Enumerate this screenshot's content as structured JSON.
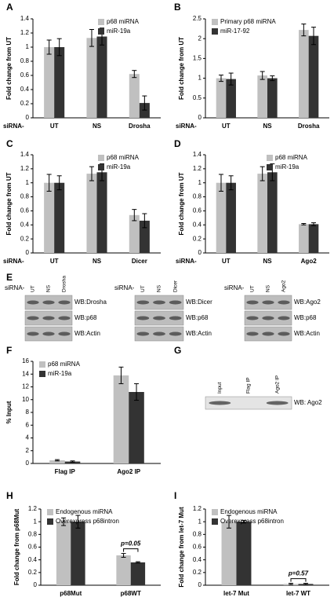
{
  "chart_data": [
    {
      "type": "bar",
      "label": "A",
      "y_label": "Fold change from UT",
      "x_prefix": "siRNA-",
      "categories": [
        "UT",
        "NS",
        "Drosha"
      ],
      "series": [
        {
          "name": "p68 miRNA",
          "color": "#c0c0c0",
          "values": [
            1,
            1.13,
            0.62
          ],
          "errors": [
            0.1,
            0.12,
            0.05
          ]
        },
        {
          "name": "miR-19a",
          "color": "#333333",
          "values": [
            1,
            1.15,
            0.21
          ],
          "errors": [
            0.12,
            0.12,
            0.1
          ]
        }
      ],
      "ylim": [
        0,
        1.4
      ],
      "yticks": [
        0,
        0.2,
        0.4,
        0.6,
        0.8,
        1,
        1.2,
        1.4
      ],
      "legend": "upper right"
    },
    {
      "type": "bar",
      "label": "B",
      "y_label": "Fold change from UT",
      "x_prefix": "siRNA-",
      "categories": [
        "UT",
        "NS",
        "Drosha"
      ],
      "series": [
        {
          "name": "Primary p68 miRNA",
          "color": "#c0c0c0",
          "values": [
            1,
            1.07,
            2.22
          ],
          "errors": [
            0.08,
            0.1,
            0.15
          ]
        },
        {
          "name": "miR-17-92",
          "color": "#333333",
          "values": [
            0.98,
            1.0,
            2.07
          ],
          "errors": [
            0.15,
            0.06,
            0.22
          ]
        }
      ],
      "ylim": [
        0,
        2.5
      ],
      "yticks": [
        0,
        0.5,
        1,
        1.5,
        2,
        2.5
      ],
      "legend": "upper left"
    },
    {
      "type": "bar",
      "label": "C",
      "y_label": "Fold change from UT",
      "x_prefix": "siRNA-",
      "categories": [
        "UT",
        "NS",
        "Dicer"
      ],
      "series": [
        {
          "name": "p68 miRNA",
          "color": "#c0c0c0",
          "values": [
            1,
            1.13,
            0.54
          ],
          "errors": [
            0.12,
            0.1,
            0.08
          ]
        },
        {
          "name": "miR-19a",
          "color": "#333333",
          "values": [
            1,
            1.15,
            0.46
          ],
          "errors": [
            0.1,
            0.12,
            0.1
          ]
        }
      ],
      "ylim": [
        0,
        1.4
      ],
      "yticks": [
        0,
        0.2,
        0.4,
        0.6,
        0.8,
        1,
        1.2,
        1.4
      ],
      "legend": "upper right"
    },
    {
      "type": "bar",
      "label": "D",
      "y_label": "Fold change from UT",
      "x_prefix": "siRNA-",
      "categories": [
        "UT",
        "NS",
        "Ago2"
      ],
      "series": [
        {
          "name": "p68 miRNA",
          "color": "#c0c0c0",
          "values": [
            1,
            1.13,
            0.41
          ],
          "errors": [
            0.12,
            0.1,
            0.01
          ]
        },
        {
          "name": "miR-19a",
          "color": "#333333",
          "values": [
            1,
            1.15,
            0.41
          ],
          "errors": [
            0.1,
            0.12,
            0.02
          ]
        }
      ],
      "ylim": [
        0,
        1.4
      ],
      "yticks": [
        0,
        0.2,
        0.4,
        0.6,
        0.8,
        1,
        1.2,
        1.4
      ],
      "legend": "upper right"
    },
    {
      "type": "bar",
      "label": "F",
      "y_label": "% Input",
      "categories": [
        "Flag IP",
        "Ago2 IP"
      ],
      "series": [
        {
          "name": "p68 miRNA",
          "color": "#c0c0c0",
          "values": [
            0.5,
            13.8
          ],
          "errors": [
            0.1,
            1.3
          ]
        },
        {
          "name": "miR-19a",
          "color": "#333333",
          "values": [
            0.3,
            11.2
          ],
          "errors": [
            0.1,
            1.3
          ]
        }
      ],
      "ylim": [
        0,
        16
      ],
      "yticks": [
        0,
        2,
        4,
        6,
        8,
        10,
        12,
        14,
        16
      ],
      "legend": "upper left"
    },
    {
      "type": "bar",
      "label": "H",
      "y_label": "Fold change from p68Mut",
      "annotation": "p=0.05",
      "categories": [
        "p68Mut",
        "p68WT"
      ],
      "series": [
        {
          "name": "Endogenous miRNA",
          "color": "#c0c0c0",
          "values": [
            1,
            0.47
          ],
          "errors": [
            0.06,
            0.03
          ]
        },
        {
          "name": "Overexpress p68intron",
          "color": "#333333",
          "values": [
            1,
            0.36
          ],
          "errors": [
            0.1,
            0.01
          ]
        }
      ],
      "ylim": [
        0,
        1.2
      ],
      "yticks": [
        0,
        0.2,
        0.4,
        0.6,
        0.8,
        1,
        1.2
      ],
      "legend": "upper left"
    },
    {
      "type": "bar",
      "label": "I",
      "y_label": "Fold change from let-7 Mut",
      "annotation": "p=0.57",
      "categories": [
        "let-7 Mut",
        "let-7 WT"
      ],
      "series": [
        {
          "name": "Endogenous miRNA",
          "color": "#c0c0c0",
          "values": [
            1,
            0.02
          ],
          "errors": [
            0.1,
            0.01
          ]
        },
        {
          "name": "Overexpress p68intron",
          "color": "#333333",
          "values": [
            1,
            0.02
          ],
          "errors": [
            0.02,
            0.01
          ]
        }
      ],
      "ylim": [
        0,
        1.2
      ],
      "yticks": [
        0,
        0.2,
        0.4,
        0.6,
        0.8,
        1,
        1.2
      ],
      "legend": "upper left"
    }
  ],
  "blot_panels": [
    {
      "label": "E",
      "blots": [
        {
          "prefix": "siRNA-",
          "lanes": [
            "UT",
            "NS",
            "Drosha"
          ],
          "rows": [
            "WB:Drosha",
            "WB:p68",
            "WB:Actin"
          ]
        },
        {
          "prefix": "siRNA-",
          "lanes": [
            "UT",
            "NS",
            "Dicer"
          ],
          "rows": [
            "WB:Dicer",
            "WB:p68",
            "WB:Actin"
          ]
        },
        {
          "prefix": "siRNA-",
          "lanes": [
            "UT",
            "NS",
            "Ago2"
          ],
          "rows": [
            "WB:Ago2",
            "WB:p68",
            "WB:Actin"
          ]
        }
      ]
    },
    {
      "label": "G",
      "blots": [
        {
          "lanes": [
            "Input",
            "Flag IP",
            "Ago2 IP"
          ],
          "rows": [
            "WB: Ago2"
          ]
        }
      ]
    }
  ]
}
